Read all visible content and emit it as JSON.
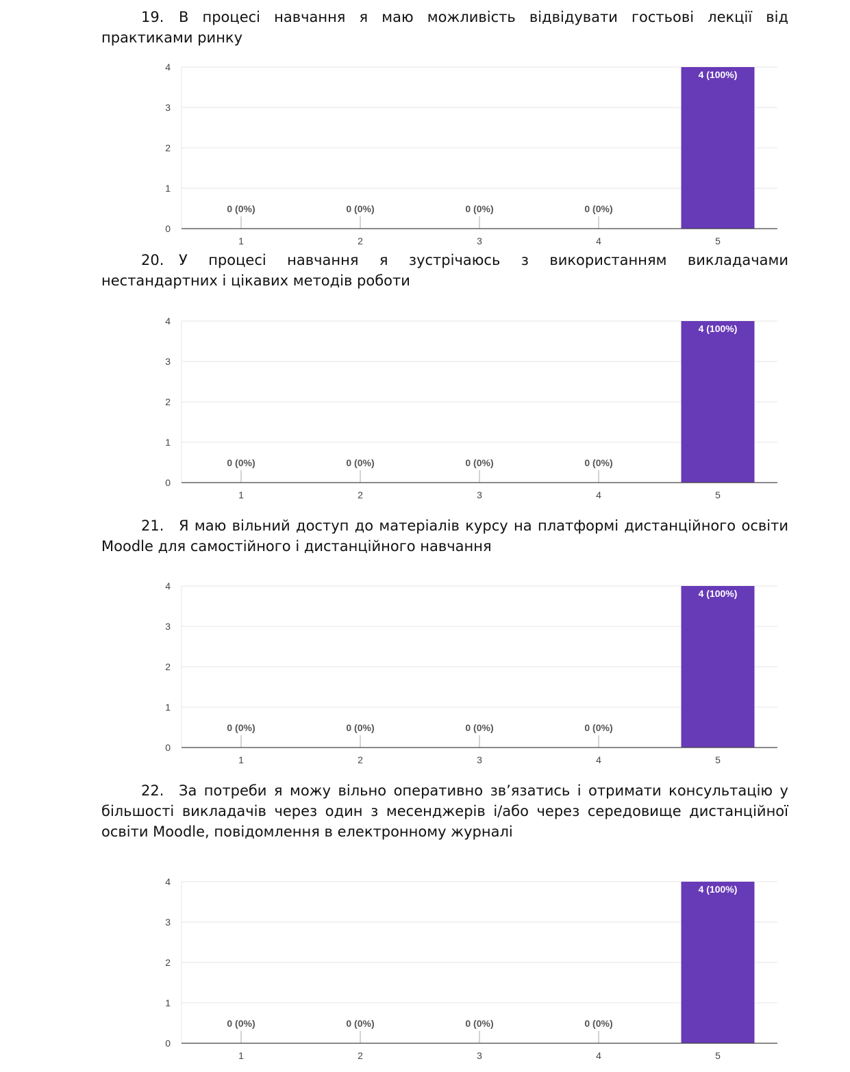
{
  "questions": [
    {
      "number": "19.",
      "text": "В процесі навчання я маю можливість відвідувати гостьові лекції від практиками ринку"
    },
    {
      "number": "20.",
      "text": "У процесі навчання я зустрічаюсь з використанням викладачами нестандартних і цікавих методів роботи"
    },
    {
      "number": "21.",
      "text": "Я маю вільний доступ до матеріалів курсу на платформі дистанційного освіти Moodle для самостійного і дистанційного навчання"
    },
    {
      "number": "22.",
      "text": "За потреби я можу вільно оперативно зв’язатись і отримати консультацію у більшості викладачів через один з месенджерів і/або через середовище дистанційної освіти Moodle, повідомлення в електронному журналі"
    }
  ],
  "chart_data": [
    {
      "type": "bar",
      "categories": [
        "1",
        "2",
        "3",
        "4",
        "5"
      ],
      "values": [
        0,
        0,
        0,
        0,
        4
      ],
      "labels": [
        "0 (0%)",
        "0 (0%)",
        "0 (0%)",
        "0 (0%)",
        "4 (100%)"
      ],
      "ylim": [
        0,
        4
      ],
      "yticks": [
        "0",
        "1",
        "2",
        "3",
        "4"
      ],
      "title": "",
      "xlabel": "",
      "ylabel": "",
      "color": "#673ab7"
    },
    {
      "type": "bar",
      "categories": [
        "1",
        "2",
        "3",
        "4",
        "5"
      ],
      "values": [
        0,
        0,
        0,
        0,
        4
      ],
      "labels": [
        "0 (0%)",
        "0 (0%)",
        "0 (0%)",
        "0 (0%)",
        "4 (100%)"
      ],
      "ylim": [
        0,
        4
      ],
      "yticks": [
        "0",
        "1",
        "2",
        "3",
        "4"
      ],
      "title": "",
      "xlabel": "",
      "ylabel": "",
      "color": "#673ab7"
    },
    {
      "type": "bar",
      "categories": [
        "1",
        "2",
        "3",
        "4",
        "5"
      ],
      "values": [
        0,
        0,
        0,
        0,
        4
      ],
      "labels": [
        "0 (0%)",
        "0 (0%)",
        "0 (0%)",
        "0 (0%)",
        "4 (100%)"
      ],
      "ylim": [
        0,
        4
      ],
      "yticks": [
        "0",
        "1",
        "2",
        "3",
        "4"
      ],
      "title": "",
      "xlabel": "",
      "ylabel": "",
      "color": "#673ab7"
    },
    {
      "type": "bar",
      "categories": [
        "1",
        "2",
        "3",
        "4",
        "5"
      ],
      "values": [
        0,
        0,
        0,
        0,
        4
      ],
      "labels": [
        "0 (0%)",
        "0 (0%)",
        "0 (0%)",
        "0 (0%)",
        "4 (100%)"
      ],
      "ylim": [
        0,
        4
      ],
      "yticks": [
        "0",
        "1",
        "2",
        "3",
        "4"
      ],
      "title": "",
      "xlabel": "",
      "ylabel": "",
      "color": "#673ab7"
    }
  ]
}
